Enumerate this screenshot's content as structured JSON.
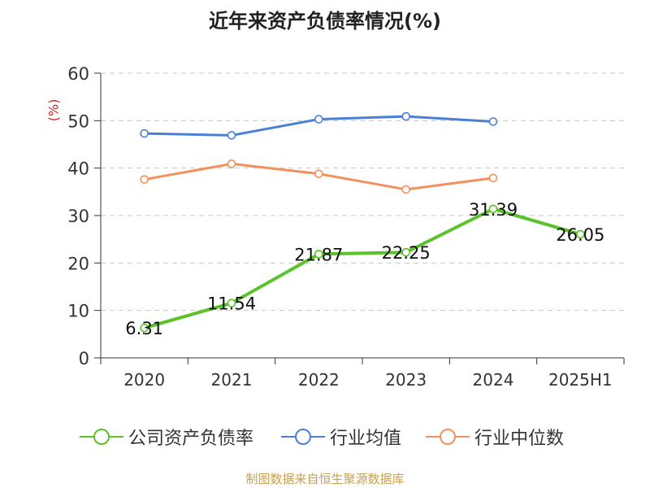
{
  "chart_data": {
    "type": "line",
    "title": "近年来资产负债率情况(%)",
    "ylabel": "(%)",
    "xlabel": "",
    "categories": [
      "2020",
      "2021",
      "2022",
      "2023",
      "2024",
      "2025H1"
    ],
    "ylim": [
      0,
      60
    ],
    "yticks": [
      0,
      10,
      20,
      30,
      40,
      50,
      60
    ],
    "grid": true,
    "legend_position": "bottom",
    "series": [
      {
        "name": "公司资产负债率",
        "color": "#5bc22a",
        "values": [
          6.31,
          11.54,
          21.87,
          22.25,
          31.39,
          26.05
        ],
        "labels": [
          "6.31",
          "11.54",
          "21.87",
          "22.25",
          "31.39",
          "26.05"
        ]
      },
      {
        "name": "行业均值",
        "color": "#4a7fd8",
        "values": [
          47.3,
          46.9,
          50.3,
          50.9,
          49.8,
          null
        ]
      },
      {
        "name": "行业中位数",
        "color": "#f3905b",
        "values": [
          37.6,
          40.9,
          38.8,
          35.5,
          37.9,
          null
        ]
      }
    ]
  },
  "source": "制图数据来自恒生聚源数据库"
}
